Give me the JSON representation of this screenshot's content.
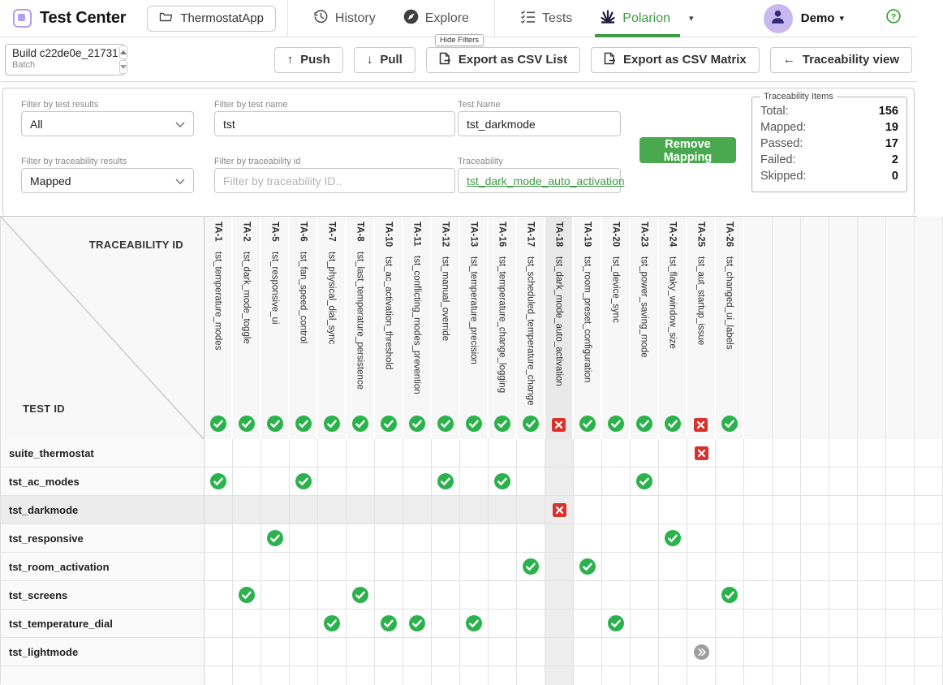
{
  "navbar": {
    "app_title": "Test Center",
    "project_button": "ThermostatApp",
    "items": [
      {
        "label": "History",
        "active": false
      },
      {
        "label": "Explore",
        "active": false
      },
      {
        "label": "Tests",
        "active": false
      },
      {
        "label": "Polarion",
        "active": true
      }
    ],
    "user": "Demo"
  },
  "toolbar": {
    "build_selector": {
      "line1": "Build c22de0e_21731",
      "line2": "Batch"
    },
    "buttons": [
      {
        "label": "Push"
      },
      {
        "label": "Pull"
      },
      {
        "label": "Export as CSV List"
      },
      {
        "label": "Export as CSV Matrix"
      },
      {
        "label": "Traceability view"
      }
    ],
    "hide_filters": "Hide Filters"
  },
  "filters": {
    "test_results": {
      "label": "Filter by test results",
      "value": "All"
    },
    "test_name_filter": {
      "label": "Filter by test name",
      "value": "tst"
    },
    "test_name": {
      "label": "Test Name",
      "value": "tst_darkmode"
    },
    "traceability_results": {
      "label": "Filter by traceability results",
      "value": "Mapped"
    },
    "traceability_id_filter": {
      "label": "Filter by traceability id",
      "placeholder": "Filter by traceability ID.."
    },
    "traceability": {
      "label": "Traceability",
      "value": "tst_dark_mode_auto_activation"
    },
    "remove_mapping_label": "Remove Mapping",
    "stats": {
      "legend": "Traceability Items",
      "rows": [
        {
          "label": "Total:",
          "value": "156"
        },
        {
          "label": "Mapped:",
          "value": "19"
        },
        {
          "label": "Passed:",
          "value": "17"
        },
        {
          "label": "Failed:",
          "value": "2"
        },
        {
          "label": "Skipped:",
          "value": "0"
        }
      ]
    }
  },
  "matrix": {
    "corner": {
      "top": "TRACEABILITY ID",
      "bottom": "TEST ID"
    },
    "highlight_column": "TA-18",
    "highlight_row": "tst_darkmode",
    "trailing_empty_columns": 7,
    "columns": [
      {
        "id": "TA-1",
        "name": "tst_temperature_modes",
        "status": "pass"
      },
      {
        "id": "TA-2",
        "name": "tst_dark_mode_toggle",
        "status": "pass"
      },
      {
        "id": "TA-5",
        "name": "tst_responsive_ui",
        "status": "pass"
      },
      {
        "id": "TA-6",
        "name": "tst_fan_speed_control",
        "status": "pass"
      },
      {
        "id": "TA-7",
        "name": "tst_physical_dial_sync",
        "status": "pass"
      },
      {
        "id": "TA-8",
        "name": "tst_last_temperature_persistence",
        "status": "pass"
      },
      {
        "id": "TA-10",
        "name": "tst_ac_activation_threshold",
        "status": "pass"
      },
      {
        "id": "TA-11",
        "name": "tst_conflicting_modes_prevention",
        "status": "pass"
      },
      {
        "id": "TA-12",
        "name": "tst_manual_override",
        "status": "pass"
      },
      {
        "id": "TA-13",
        "name": "tst_temperature_precision",
        "status": "pass"
      },
      {
        "id": "TA-16",
        "name": "tst_temperature_change_logging",
        "status": "pass"
      },
      {
        "id": "TA-17",
        "name": "tst_scheduled_temperature_change",
        "status": "pass"
      },
      {
        "id": "TA-18",
        "name": "tst_dark_mode_auto_activation",
        "status": "fail"
      },
      {
        "id": "TA-19",
        "name": "tst_room_preset_configuration",
        "status": "pass"
      },
      {
        "id": "TA-20",
        "name": "tst_device_sync",
        "status": "pass"
      },
      {
        "id": "TA-23",
        "name": "tst_power_saving_mode",
        "status": "pass"
      },
      {
        "id": "TA-24",
        "name": "tst_flaky_window_size",
        "status": "pass"
      },
      {
        "id": "TA-25",
        "name": "tst_aut_startup_issue",
        "status": "fail"
      },
      {
        "id": "TA-26",
        "name": "tst_changed_ui_labels",
        "status": "pass"
      }
    ],
    "rows": [
      {
        "name": "suite_thermostat",
        "cells": {
          "TA-25": "fail"
        }
      },
      {
        "name": "tst_ac_modes",
        "cells": {
          "TA-1": "pass",
          "TA-6": "pass",
          "TA-12": "pass",
          "TA-16": "pass",
          "TA-23": "pass"
        }
      },
      {
        "name": "tst_darkmode",
        "cells": {
          "TA-18": "fail"
        }
      },
      {
        "name": "tst_responsive",
        "cells": {
          "TA-5": "pass",
          "TA-24": "pass"
        }
      },
      {
        "name": "tst_room_activation",
        "cells": {
          "TA-17": "pass",
          "TA-19": "pass"
        }
      },
      {
        "name": "tst_screens",
        "cells": {
          "TA-2": "pass",
          "TA-8": "pass",
          "TA-26": "pass"
        }
      },
      {
        "name": "tst_temperature_dial",
        "cells": {
          "TA-7": "pass",
          "TA-10": "pass",
          "TA-11": "pass",
          "TA-13": "pass",
          "TA-20": "pass"
        }
      },
      {
        "name": "tst_lightmode",
        "cells": {
          "TA-25": "skip"
        }
      }
    ]
  },
  "colors": {
    "accent_green": "#3e9b44",
    "pass_green": "#2bb24c",
    "fail_red": "#d9312b",
    "skip_gray": "#9e9e9e",
    "button_green": "#4aa94e",
    "brand_purple": "#b29df0",
    "avatar_purple": "#c9b8ee",
    "highlight_gray": "#ededed"
  }
}
